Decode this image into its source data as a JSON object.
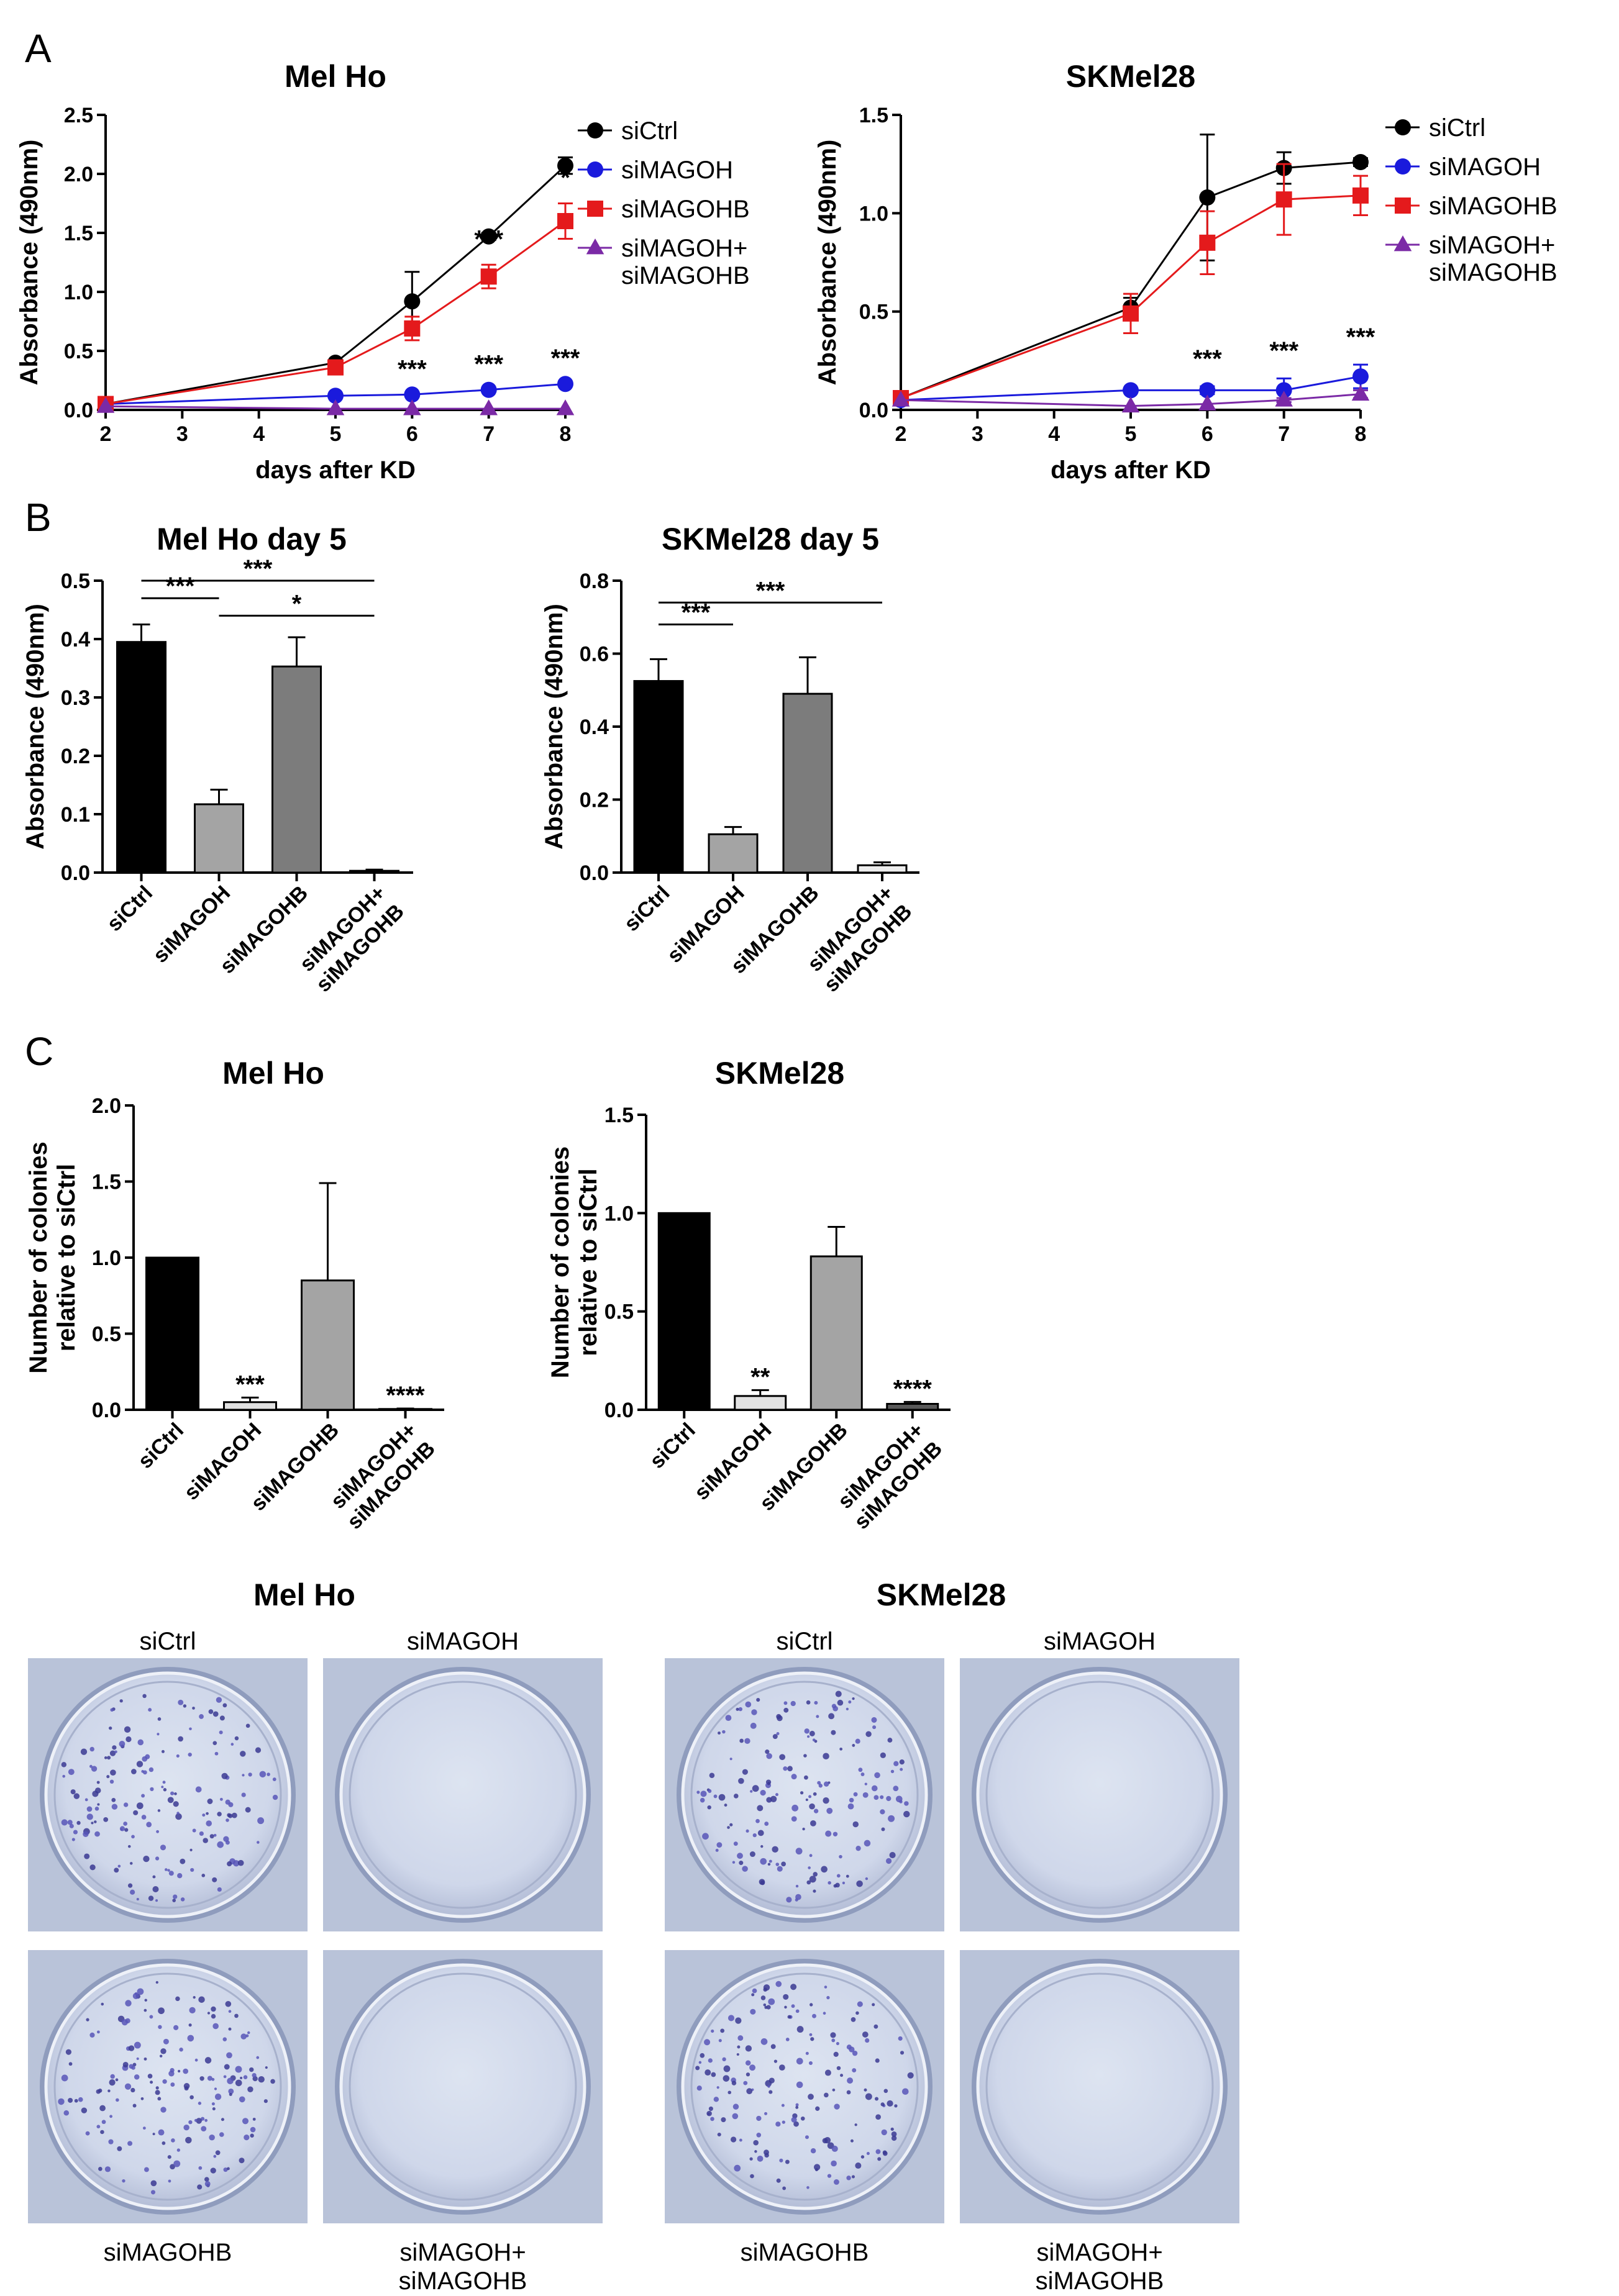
{
  "panel_letters": [
    "A",
    "B",
    "C"
  ],
  "colors": {
    "siCtrl": "#000000",
    "siMAGOH": "#1a1adc",
    "siMAGOHB": "#e41a1c",
    "siMAGOH_siMAGOHB": "#7b2aa6"
  },
  "chart_data": [
    {
      "id": "A-melho",
      "type": "line",
      "title": "Mel Ho",
      "xlabel": "days after KD",
      "ylabel": "Absorbance (490nm)",
      "xlim": [
        2,
        8
      ],
      "ylim": [
        0,
        2.5
      ],
      "xticks": [
        "2",
        "3",
        "4",
        "5",
        "6",
        "7",
        "8"
      ],
      "yticks": [
        "0.0",
        "0.5",
        "1.0",
        "1.5",
        "2.0",
        "2.5"
      ],
      "legend_position": "right",
      "x": [
        2,
        5,
        6,
        7,
        8
      ],
      "series": [
        {
          "name": "siCtrl",
          "color": "#000000",
          "marker": "circle",
          "values": [
            0.05,
            0.4,
            0.92,
            1.47,
            2.07
          ],
          "errors": [
            0.01,
            0.02,
            0.25,
            0.03,
            0.07
          ]
        },
        {
          "name": "siMAGOH",
          "color": "#1a1adc",
          "marker": "circle",
          "values": [
            0.05,
            0.12,
            0.13,
            0.17,
            0.22
          ],
          "errors": [
            0.01,
            0.01,
            0.01,
            0.01,
            0.02
          ]
        },
        {
          "name": "siMAGOHB",
          "color": "#e41a1c",
          "marker": "square",
          "values": [
            0.05,
            0.36,
            0.69,
            1.13,
            1.6
          ],
          "errors": [
            0.01,
            0.03,
            0.1,
            0.1,
            0.15
          ]
        },
        {
          "name": "siMAGOH+\nsiMAGOHB",
          "color": "#7b2aa6",
          "marker": "triangle",
          "values": [
            0.03,
            0.01,
            0.01,
            0.01,
            0.01
          ],
          "errors": [
            0,
            0,
            0,
            0,
            0
          ]
        }
      ],
      "annotations": [
        {
          "x": 6,
          "y": 0.13,
          "text": "***"
        },
        {
          "x": 7,
          "y": 0.17,
          "text": "***"
        },
        {
          "x": 8,
          "y": 0.22,
          "text": "***"
        },
        {
          "x": 7,
          "y": 1.23,
          "text": "***"
        },
        {
          "x": 8,
          "y": 1.75,
          "text": "*"
        }
      ]
    },
    {
      "id": "A-skmel",
      "type": "line",
      "title": "SKMel28",
      "xlabel": "days after KD",
      "ylabel": "Absorbance (490nm)",
      "xlim": [
        2,
        8
      ],
      "ylim": [
        0,
        1.5
      ],
      "xticks": [
        "2",
        "3",
        "4",
        "5",
        "6",
        "7",
        "8"
      ],
      "yticks": [
        "0.0",
        "0.5",
        "1.0",
        "1.5"
      ],
      "legend_position": "right",
      "x": [
        2,
        5,
        6,
        7,
        8
      ],
      "series": [
        {
          "name": "siCtrl",
          "color": "#000000",
          "marker": "circle",
          "values": [
            0.06,
            0.52,
            1.08,
            1.23,
            1.26
          ],
          "errors": [
            0.01,
            0.05,
            0.32,
            0.08,
            0.02
          ]
        },
        {
          "name": "siMAGOH",
          "color": "#1a1adc",
          "marker": "circle",
          "values": [
            0.05,
            0.1,
            0.1,
            0.1,
            0.17
          ],
          "errors": [
            0.01,
            0.01,
            0.02,
            0.06,
            0.06
          ]
        },
        {
          "name": "siMAGOHB",
          "color": "#e41a1c",
          "marker": "square",
          "values": [
            0.06,
            0.49,
            0.85,
            1.07,
            1.09
          ],
          "errors": [
            0.01,
            0.1,
            0.16,
            0.18,
            0.1
          ]
        },
        {
          "name": "siMAGOH+\nsiMAGOHB",
          "color": "#7b2aa6",
          "marker": "triangle",
          "values": [
            0.05,
            0.02,
            0.03,
            0.05,
            0.08
          ],
          "errors": [
            0,
            0,
            0,
            0.01,
            0.02
          ]
        }
      ],
      "annotations": [
        {
          "x": 6,
          "y": 0.13,
          "text": "***"
        },
        {
          "x": 7,
          "y": 0.17,
          "text": "***"
        },
        {
          "x": 8,
          "y": 0.24,
          "text": "***"
        }
      ]
    },
    {
      "id": "B-melho",
      "type": "bar",
      "title": "Mel Ho day 5",
      "ylabel": "Absorbance (490nm)",
      "ylim": [
        0,
        0.5
      ],
      "yticks": [
        "0.0",
        "0.1",
        "0.2",
        "0.3",
        "0.4",
        "0.5"
      ],
      "categories": [
        "siCtrl",
        "siMAGOH",
        "siMAGOHB",
        "siMAGOH+\nsiMAGOHB"
      ],
      "values": [
        0.395,
        0.117,
        0.353,
        0.003
      ],
      "errors": [
        0.03,
        0.025,
        0.05,
        0.002
      ],
      "bar_colors": [
        "#000000",
        "#a4a4a4",
        "#7c7c7c",
        "#ededed"
      ],
      "brackets": [
        {
          "from": 0,
          "to": 1,
          "y": 0.47,
          "text": "***"
        },
        {
          "from": 0,
          "to": 3,
          "y": 0.5,
          "text": "***"
        },
        {
          "from": 1,
          "to": 3,
          "y": 0.44,
          "text": "*"
        }
      ]
    },
    {
      "id": "B-skmel",
      "type": "bar",
      "title": "SKMel28 day 5",
      "ylabel": "Absorbance (490nm)",
      "ylim": [
        0,
        0.8
      ],
      "yticks": [
        "0.0",
        "0.2",
        "0.4",
        "0.6",
        "0.8"
      ],
      "categories": [
        "siCtrl",
        "siMAGOH",
        "siMAGOHB",
        "siMAGOH+\nsiMAGOHB"
      ],
      "values": [
        0.525,
        0.105,
        0.49,
        0.02
      ],
      "errors": [
        0.06,
        0.02,
        0.1,
        0.008
      ],
      "bar_colors": [
        "#000000",
        "#a4a4a4",
        "#7c7c7c",
        "#ededed"
      ],
      "brackets": [
        {
          "from": 0,
          "to": 1,
          "y": 0.68,
          "text": "***"
        },
        {
          "from": 0,
          "to": 3,
          "y": 0.74,
          "text": "***"
        }
      ]
    },
    {
      "id": "C-melho",
      "type": "bar",
      "title": "Mel Ho",
      "ylabel": "Number of colonies\nrelative to siCtrl",
      "ylim": [
        0,
        2.0
      ],
      "yticks": [
        "0.0",
        "0.5",
        "1.0",
        "1.5",
        "2.0"
      ],
      "categories": [
        "siCtrl",
        "siMAGOH",
        "siMAGOHB",
        "siMAGOH+\nsiMAGOHB"
      ],
      "values": [
        1.0,
        0.05,
        0.85,
        0.005
      ],
      "errors": [
        0,
        0.03,
        0.64,
        0.003
      ],
      "bar_colors": [
        "#000000",
        "#e2e2e2",
        "#a4a4a4",
        "#595959"
      ],
      "labels": [
        "",
        "***",
        "",
        "****"
      ]
    },
    {
      "id": "C-skmel",
      "type": "bar",
      "title": "SKMel28",
      "ylabel": "Number of colonies\nrelative to siCtrl",
      "ylim": [
        0,
        1.5
      ],
      "yticks": [
        "0.0",
        "0.5",
        "1.0",
        "1.5"
      ],
      "categories": [
        "siCtrl",
        "siMAGOH",
        "siMAGOHB",
        "siMAGOH+\nsiMAGOHB"
      ],
      "values": [
        1.0,
        0.07,
        0.78,
        0.03
      ],
      "errors": [
        0,
        0.03,
        0.15,
        0.01
      ],
      "bar_colors": [
        "#000000",
        "#e2e2e2",
        "#a4a4a4",
        "#595959"
      ],
      "labels": [
        "",
        "**",
        "",
        "****"
      ]
    }
  ],
  "photos": {
    "groups": [
      {
        "title": "Mel Ho",
        "wells": [
          {
            "label": "siCtrl",
            "colonies": "many"
          },
          {
            "label": "siMAGOH",
            "colonies": "none"
          },
          {
            "label": "siMAGOHB",
            "colonies": "many"
          },
          {
            "label": "siMAGOH+\nsiMAGOHB",
            "colonies": "none"
          }
        ]
      },
      {
        "title": "SKMel28",
        "wells": [
          {
            "label": "siCtrl",
            "colonies": "many"
          },
          {
            "label": "siMAGOH",
            "colonies": "none"
          },
          {
            "label": "siMAGOHB",
            "colonies": "many"
          },
          {
            "label": "siMAGOH+\nsiMAGOHB",
            "colonies": "none"
          }
        ]
      }
    ]
  }
}
